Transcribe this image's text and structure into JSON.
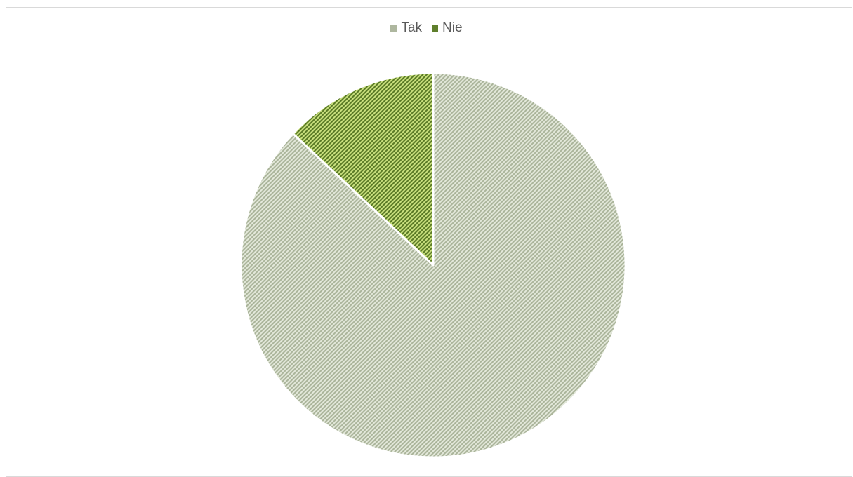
{
  "chart_data": {
    "type": "pie",
    "title": "",
    "categories": [
      "Tak",
      "Nie"
    ],
    "values": [
      87,
      13
    ],
    "colors": [
      "#bcc5ad",
      "#8fb24a"
    ],
    "legend_position": "top"
  },
  "legend": {
    "items": [
      {
        "label": "Tak",
        "color": "#aeb79f"
      },
      {
        "label": "Nie",
        "color": "#5f7f2c"
      }
    ]
  }
}
